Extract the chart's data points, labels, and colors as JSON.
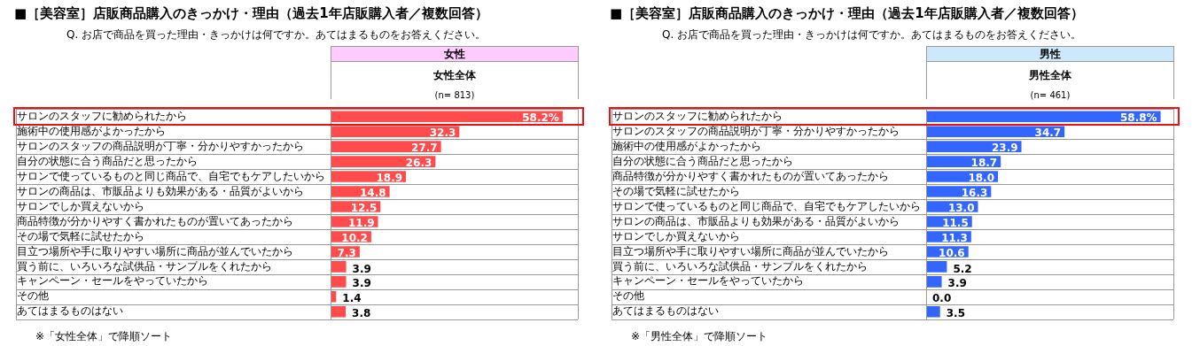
{
  "chart_data": [
    {
      "type": "bar",
      "orientation": "horizontal",
      "title": "■［美容室］店販商品購入のきっかけ・理由（過去1年店販購入者／複数回答）",
      "subtitle": "Q. お店で商品を買った理由・きっかけは何ですか。あてはまるものをお答えください。",
      "categories": [
        "サロンのスタッフに勧められたから",
        "施術中の使用感がよかったから",
        "サロンのスタッフの商品説明が丁寧・分かりやすかったから",
        "自分の状態に合う商品だと思ったから",
        "サロンで使っているものと同じ商品で、自宅でもケアしたいから",
        "サロンの商品は、市販品よりも効果がある・品質がよいから",
        "サロンでしか買えないから",
        "商品特徴が分かりやすく書かれたものが置いてあったから",
        "その場で気軽に試せたから",
        "目立つ場所や手に取りやすい場所に商品が並んでいたから",
        "買う前に、いろいろな試供品・サンプルをくれたから",
        "キャンペーン・セールをやっていたから",
        "その他",
        "あてはまるものはない"
      ],
      "values": [
        58.2,
        32.3,
        27.7,
        26.3,
        18.9,
        14.8,
        12.5,
        11.9,
        10.2,
        7.3,
        3.9,
        3.9,
        1.4,
        3.8
      ],
      "value_labels": [
        "58.2%",
        "32.3",
        "27.7",
        "26.3",
        "18.9",
        "14.8",
        "12.5",
        "11.9",
        "10.2",
        "7.3",
        "3.9",
        "3.9",
        "1.4",
        "3.8"
      ],
      "color": "#ff4b4b",
      "xlim": [
        0,
        62
      ],
      "tick_labels": "y",
      "grid": "y",
      "annotations": [
        "女性",
        "女性全体",
        "(n= 813)",
        "※「女性全体」で降順ソート"
      ]
    },
    {
      "type": "bar",
      "orientation": "horizontal",
      "title": "■［美容室］店販商品購入のきっかけ・理由（過去1年店販購入者／複数回答）",
      "subtitle": "Q. お店で商品を買った理由・きっかけは何ですか。あてはまるものをお答えください。",
      "categories": [
        "サロンのスタッフに勧められたから",
        "サロンのスタッフの商品説明が丁寧・分かりやすかったから",
        "施術中の使用感がよかったから",
        "自分の状態に合う商品だと思ったから",
        "商品特徴が分かりやすく書かれたものが置いてあったから",
        "その場で気軽に試せたから",
        "サロンで使っているものと同じ商品で、自宅でもケアしたいから",
        "サロンの商品は、市販品よりも効果がある・品質がよいから",
        "サロンでしか買えないから",
        "目立つ場所や手に取りやすい場所に商品が並んでいたから",
        "買う前に、いろいろな試供品・サンプルをくれたから",
        "キャンペーン・セールをやっていたから",
        "その他",
        "あてはまるものはない"
      ],
      "values": [
        58.8,
        34.7,
        23.9,
        18.7,
        18.0,
        16.3,
        13.0,
        11.5,
        11.3,
        10.6,
        5.2,
        3.9,
        0.0,
        3.5
      ],
      "value_labels": [
        "58.8%",
        "34.7",
        "23.9",
        "18.7",
        "18.0",
        "16.3",
        "13.0",
        "11.5",
        "11.3",
        "10.6",
        "5.2",
        "3.9",
        "0.0",
        "3.5"
      ],
      "color": "#3366ff",
      "xlim": [
        0,
        62
      ],
      "tick_labels": "y",
      "grid": "y",
      "annotations": [
        "男性",
        "男性全体",
        "(n= 461)",
        "※「男性全体」で降順ソート"
      ]
    }
  ]
}
